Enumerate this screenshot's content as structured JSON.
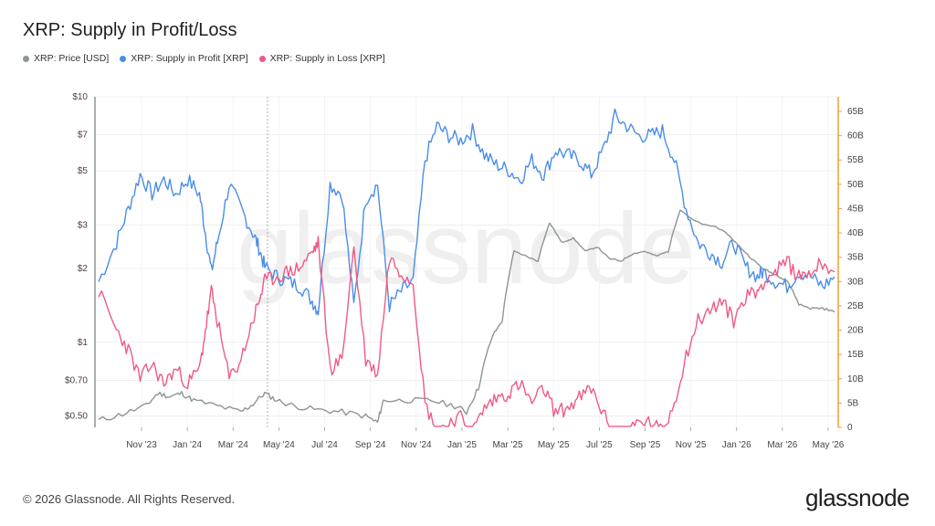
{
  "header": {
    "title": "XRP: Supply in Profit/Loss"
  },
  "footer": {
    "copyright": "© 2026 Glassnode. All Rights Reserved.",
    "brand": "glassnode"
  },
  "watermark": "glassnode",
  "colors": {
    "price": "#8c9691",
    "profit": "#4a8de8",
    "loss": "#ef5a85",
    "right_axis": "#f0a030",
    "left_axis": "#8c9691"
  },
  "chart_data": {
    "type": "line",
    "title": "XRP: Supply in Profit/Loss",
    "x_ticks": [
      "Nov '23",
      "Jan '24",
      "Mar '24",
      "May '24",
      "Jul '24",
      "Sep '24",
      "Nov '24",
      "Jan '25",
      "Mar '25",
      "May '25",
      "Jul '25",
      "Sep '25",
      "Nov '25",
      "Jan '26",
      "Mar '26",
      "May '26"
    ],
    "y_left": {
      "scale": "log",
      "ticks": [
        "$0.50",
        "$0.70",
        "$1",
        "$2",
        "$3",
        "$5",
        "$7",
        "$10"
      ],
      "tick_values": [
        0.5,
        0.7,
        1,
        2,
        3,
        5,
        7,
        10
      ],
      "range": [
        0.45,
        10
      ]
    },
    "y_right": {
      "scale": "linear",
      "ticks": [
        "0",
        "5B",
        "10B",
        "15B",
        "20B",
        "25B",
        "30B",
        "35B",
        "40B",
        "45B",
        "50B",
        "55B",
        "60B",
        "65B"
      ],
      "tick_values": [
        0,
        5,
        10,
        15,
        20,
        25,
        30,
        35,
        40,
        45,
        50,
        55,
        60,
        65
      ],
      "range": [
        0,
        68
      ]
    },
    "grid": true,
    "series": [
      {
        "name": "XRP: Price [USD]",
        "axis": "left",
        "points": [
          [
            0,
            0.48
          ],
          [
            4,
            0.51
          ],
          [
            8,
            0.55
          ],
          [
            10,
            0.62
          ],
          [
            12,
            0.6
          ],
          [
            14,
            0.62
          ],
          [
            16,
            0.58
          ],
          [
            20,
            0.55
          ],
          [
            24,
            0.52
          ],
          [
            26,
            0.56
          ],
          [
            28,
            0.62
          ],
          [
            30,
            0.58
          ],
          [
            33,
            0.55
          ],
          [
            37,
            0.53
          ],
          [
            41,
            0.52
          ],
          [
            45,
            0.5
          ],
          [
            47,
            0.47
          ],
          [
            48,
            0.58
          ],
          [
            52,
            0.58
          ],
          [
            56,
            0.58
          ],
          [
            60,
            0.55
          ],
          [
            62,
            0.52
          ],
          [
            64,
            0.65
          ],
          [
            66,
            1.0
          ],
          [
            68,
            1.2
          ],
          [
            70,
            2.3
          ],
          [
            72,
            2.2
          ],
          [
            74,
            2.1
          ],
          [
            76,
            3.0
          ],
          [
            78,
            2.5
          ],
          [
            80,
            2.6
          ],
          [
            82,
            2.3
          ],
          [
            84,
            2.4
          ],
          [
            86,
            2.15
          ],
          [
            88,
            2.1
          ],
          [
            90,
            2.25
          ],
          [
            92,
            2.3
          ],
          [
            94,
            2.2
          ],
          [
            96,
            2.3
          ],
          [
            98,
            3.4
          ],
          [
            100,
            3.1
          ],
          [
            102,
            2.95
          ],
          [
            104,
            2.9
          ],
          [
            106,
            2.7
          ],
          [
            108,
            2.4
          ],
          [
            110,
            2.15
          ],
          [
            112,
            1.95
          ],
          [
            114,
            1.85
          ],
          [
            116,
            1.75
          ],
          [
            118,
            1.4
          ],
          [
            120,
            1.35
          ],
          [
            122,
            1.35
          ],
          [
            124,
            1.3
          ]
        ]
      },
      {
        "name": "XRP: Supply in Profit [XRP]",
        "axis": "right",
        "points": [
          [
            0,
            30
          ],
          [
            3,
            38
          ],
          [
            5,
            45
          ],
          [
            7,
            52
          ],
          [
            9,
            48
          ],
          [
            11,
            51
          ],
          [
            13,
            48
          ],
          [
            15,
            51
          ],
          [
            17,
            48
          ],
          [
            18,
            40
          ],
          [
            19,
            32
          ],
          [
            20,
            38
          ],
          [
            22,
            50
          ],
          [
            24,
            45
          ],
          [
            26,
            40
          ],
          [
            27,
            37
          ],
          [
            28,
            33
          ],
          [
            30,
            31
          ],
          [
            32,
            30
          ],
          [
            34,
            29
          ],
          [
            36,
            26
          ],
          [
            37,
            24
          ],
          [
            39,
            50
          ],
          [
            41,
            48
          ],
          [
            43,
            25
          ],
          [
            45,
            47
          ],
          [
            47,
            50
          ],
          [
            49,
            25
          ],
          [
            51,
            28
          ],
          [
            53,
            30
          ],
          [
            55,
            55
          ],
          [
            57,
            62
          ],
          [
            59,
            60
          ],
          [
            61,
            59
          ],
          [
            63,
            61
          ],
          [
            65,
            56
          ],
          [
            67,
            54
          ],
          [
            69,
            53
          ],
          [
            71,
            51
          ],
          [
            73,
            55
          ],
          [
            75,
            52
          ],
          [
            77,
            57
          ],
          [
            79,
            56
          ],
          [
            81,
            55
          ],
          [
            83,
            52
          ],
          [
            85,
            57
          ],
          [
            87,
            64
          ],
          [
            89,
            62
          ],
          [
            91,
            60
          ],
          [
            93,
            60
          ],
          [
            95,
            61
          ],
          [
            97,
            55
          ],
          [
            99,
            45
          ],
          [
            101,
            38
          ],
          [
            103,
            36
          ],
          [
            105,
            34
          ],
          [
            107,
            38
          ],
          [
            109,
            33
          ],
          [
            111,
            31
          ],
          [
            112,
            32
          ],
          [
            114,
            30
          ],
          [
            116,
            29
          ],
          [
            118,
            32
          ],
          [
            120,
            31
          ],
          [
            122,
            29
          ],
          [
            124,
            31
          ]
        ]
      },
      {
        "name": "XRP: Supply in Loss [XRP]",
        "axis": "right",
        "points": [
          [
            0,
            28
          ],
          [
            3,
            20
          ],
          [
            5,
            16
          ],
          [
            7,
            10
          ],
          [
            9,
            13
          ],
          [
            11,
            9
          ],
          [
            13,
            12
          ],
          [
            15,
            9
          ],
          [
            17,
            12
          ],
          [
            18,
            20
          ],
          [
            19,
            28
          ],
          [
            20,
            22
          ],
          [
            22,
            10
          ],
          [
            24,
            14
          ],
          [
            26,
            22
          ],
          [
            27,
            26
          ],
          [
            28,
            30
          ],
          [
            30,
            31
          ],
          [
            32,
            32
          ],
          [
            34,
            33
          ],
          [
            36,
            36
          ],
          [
            37,
            38
          ],
          [
            39,
            12
          ],
          [
            41,
            14
          ],
          [
            43,
            37
          ],
          [
            45,
            14
          ],
          [
            47,
            11
          ],
          [
            49,
            35
          ],
          [
            51,
            32
          ],
          [
            53,
            30
          ],
          [
            55,
            5
          ],
          [
            57,
            -1
          ],
          [
            59,
            1
          ],
          [
            61,
            2
          ],
          [
            63,
            -1
          ],
          [
            65,
            4
          ],
          [
            67,
            6
          ],
          [
            69,
            7
          ],
          [
            71,
            9
          ],
          [
            73,
            5
          ],
          [
            75,
            8
          ],
          [
            77,
            3
          ],
          [
            79,
            4
          ],
          [
            81,
            6
          ],
          [
            83,
            8
          ],
          [
            85,
            3
          ],
          [
            87,
            -3
          ],
          [
            89,
            -1
          ],
          [
            91,
            1
          ],
          [
            93,
            1
          ],
          [
            95,
            -1
          ],
          [
            97,
            5
          ],
          [
            99,
            15
          ],
          [
            101,
            22
          ],
          [
            103,
            24
          ],
          [
            105,
            26
          ],
          [
            107,
            22
          ],
          [
            109,
            27
          ],
          [
            111,
            28
          ],
          [
            112,
            30
          ],
          [
            114,
            32
          ],
          [
            116,
            34
          ],
          [
            118,
            31
          ],
          [
            120,
            32
          ],
          [
            122,
            34
          ],
          [
            124,
            32
          ]
        ]
      }
    ]
  }
}
